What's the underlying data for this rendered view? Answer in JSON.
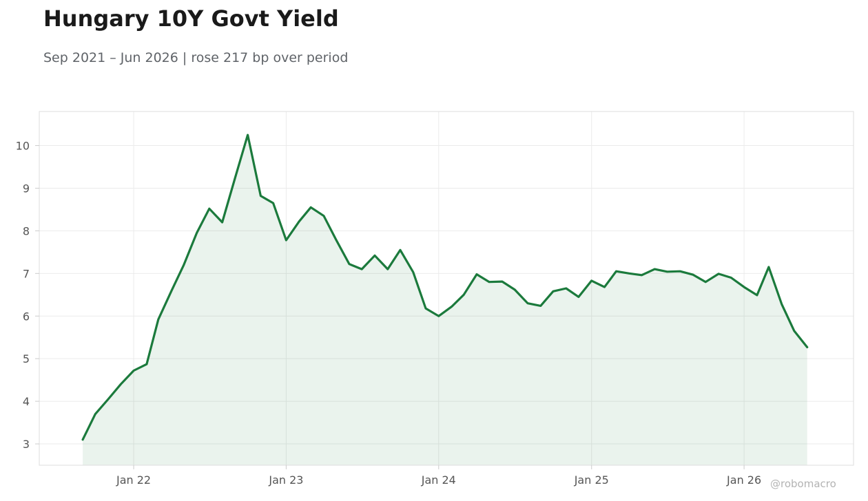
{
  "header": {
    "title": "Hungary 10Y Govt Yield",
    "subtitle": "Sep 2021 – Jun 2026 | rose 217 bp over period"
  },
  "watermark": "@robomacro",
  "colors": {
    "line": "#1b7a3c",
    "fill": "#1b7a3c",
    "grid": "#ebebeb",
    "frame": "#dddddd",
    "tick_text": "#555555"
  },
  "chart_data": {
    "type": "area",
    "x_tick_labels": [
      "Jan 22",
      "Jan 23",
      "Jan 24",
      "Jan 25",
      "Jan 26"
    ],
    "x_ticks": [
      "2022-01-01",
      "2023-01-01",
      "2024-01-01",
      "2025-01-01",
      "2026-01-01"
    ],
    "y_ticks": [
      3,
      4,
      5,
      6,
      7,
      8,
      9,
      10
    ],
    "xlim": [
      "2021-05-20",
      "2026-09-20"
    ],
    "ylim": [
      2.5,
      10.8
    ],
    "grid": true,
    "series": [
      {
        "x": [
          "2021-09-01",
          "2021-10-01",
          "2021-11-01",
          "2021-12-01",
          "2022-01-01",
          "2022-02-01",
          "2022-03-01",
          "2022-04-01",
          "2022-05-01",
          "2022-06-01",
          "2022-07-01",
          "2022-08-01",
          "2022-09-01",
          "2022-10-01",
          "2022-11-01",
          "2022-12-01",
          "2023-01-01",
          "2023-02-01",
          "2023-03-01",
          "2023-04-01",
          "2023-05-01",
          "2023-06-01",
          "2023-07-01",
          "2023-08-01",
          "2023-09-01",
          "2023-10-01",
          "2023-11-01",
          "2023-12-01",
          "2024-01-01",
          "2024-02-01",
          "2024-03-01",
          "2024-04-01",
          "2024-05-01",
          "2024-06-01",
          "2024-07-01",
          "2024-08-01",
          "2024-09-01",
          "2024-10-01",
          "2024-11-01",
          "2024-12-01",
          "2025-01-01",
          "2025-02-01",
          "2025-03-01",
          "2025-04-01",
          "2025-05-01",
          "2025-06-01",
          "2025-07-01",
          "2025-08-01",
          "2025-09-01",
          "2025-10-01",
          "2025-11-01",
          "2025-12-01",
          "2026-01-01",
          "2026-02-01",
          "2026-03-01",
          "2026-04-01",
          "2026-05-01",
          "2026-06-01"
        ],
        "values": [
          3.1,
          3.7,
          4.05,
          4.4,
          4.72,
          4.87,
          5.92,
          6.58,
          7.2,
          7.95,
          8.52,
          8.2,
          9.25,
          10.25,
          8.82,
          8.65,
          7.78,
          8.22,
          8.55,
          8.35,
          7.78,
          7.22,
          7.1,
          7.42,
          7.1,
          7.55,
          7.03,
          6.18,
          6.0,
          6.22,
          6.5,
          6.98,
          6.8,
          6.81,
          6.62,
          6.3,
          6.24,
          6.58,
          6.65,
          6.45,
          6.83,
          6.68,
          7.05,
          7.0,
          6.96,
          7.1,
          7.04,
          7.05,
          6.97,
          6.8,
          6.99,
          6.9,
          6.68,
          6.49,
          7.15,
          6.28,
          5.65,
          5.27
        ]
      }
    ]
  }
}
